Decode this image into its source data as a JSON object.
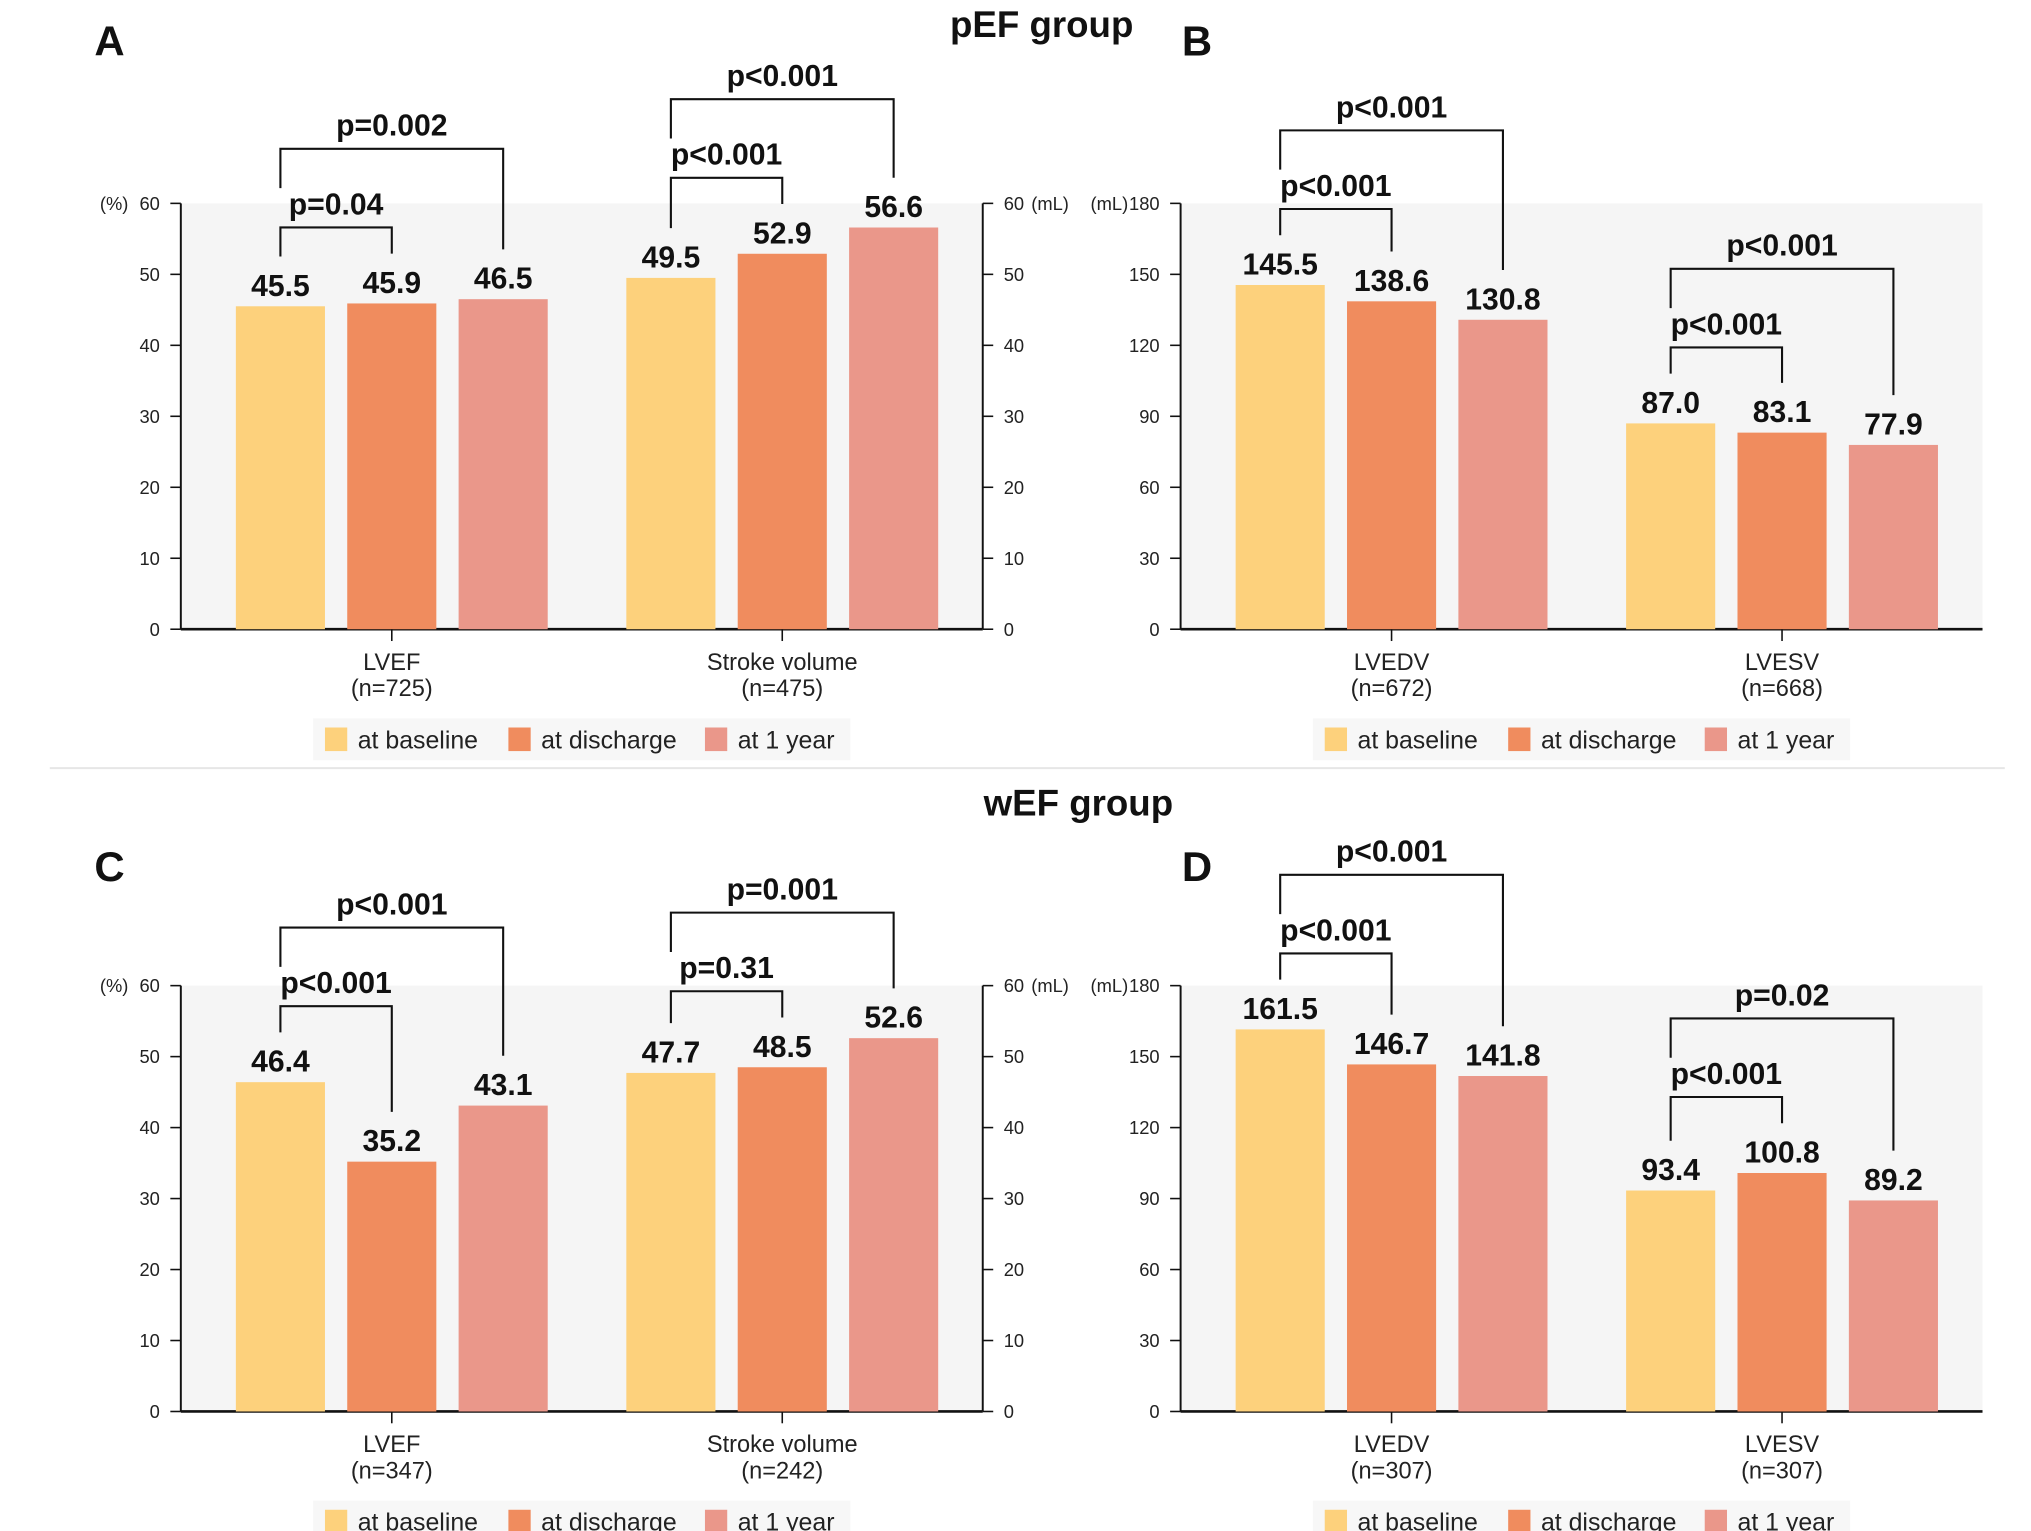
{
  "chart_data": {
    "type": "bar",
    "section_titles": [
      "pEF group",
      "wEF group"
    ],
    "legend": {
      "placement": "bottom",
      "entries": [
        {
          "name": "at baseline",
          "color": "#FDD17C"
        },
        {
          "name": "at discharge",
          "color": "#F08C5E"
        },
        {
          "name": "at 1 year",
          "color": "#EA978A"
        }
      ]
    },
    "panels": [
      {
        "letter": "A",
        "section": "pEF group",
        "left_axis": {
          "unit": "(%)",
          "ylim": [
            0,
            60
          ],
          "ticks": [
            0,
            10,
            20,
            30,
            40,
            50,
            60
          ]
        },
        "right_axis": {
          "unit": "(mL)",
          "ylim": [
            0,
            60
          ],
          "ticks": [
            0,
            10,
            20,
            30,
            40,
            50,
            60
          ]
        },
        "groups": [
          {
            "label": "LVEF",
            "n": "(n=725)",
            "values": [
              45.5,
              45.9,
              46.5
            ],
            "comparisons": [
              {
                "from": 0,
                "to": 1,
                "p": "p=0.04"
              },
              {
                "from": 0,
                "to": 2,
                "p": "p=0.002"
              }
            ]
          },
          {
            "label": "Stroke volume",
            "n": "(n=475)",
            "values": [
              49.5,
              52.9,
              56.6
            ],
            "comparisons": [
              {
                "from": 0,
                "to": 1,
                "p": "p<0.001"
              },
              {
                "from": 0,
                "to": 2,
                "p": "p<0.001"
              }
            ]
          }
        ]
      },
      {
        "letter": "B",
        "section": "pEF group",
        "left_axis": {
          "unit": "(mL)",
          "ylim": [
            0,
            180
          ],
          "ticks": [
            0,
            30,
            60,
            90,
            120,
            150,
            180
          ]
        },
        "groups": [
          {
            "label": "LVEDV",
            "n": "(n=672)",
            "values": [
              145.5,
              138.6,
              130.8
            ],
            "comparisons": [
              {
                "from": 0,
                "to": 1,
                "p": "p<0.001"
              },
              {
                "from": 0,
                "to": 2,
                "p": "p<0.001"
              }
            ]
          },
          {
            "label": "LVESV",
            "n": "(n=668)",
            "values": [
              87.0,
              83.1,
              77.9
            ],
            "comparisons": [
              {
                "from": 0,
                "to": 1,
                "p": "p<0.001"
              },
              {
                "from": 0,
                "to": 2,
                "p": "p<0.001"
              }
            ]
          }
        ]
      },
      {
        "letter": "C",
        "section": "wEF group",
        "left_axis": {
          "unit": "(%)",
          "ylim": [
            0,
            60
          ],
          "ticks": [
            0,
            10,
            20,
            30,
            40,
            50,
            60
          ]
        },
        "right_axis": {
          "unit": "(mL)",
          "ylim": [
            0,
            60
          ],
          "ticks": [
            0,
            10,
            20,
            30,
            40,
            50,
            60
          ]
        },
        "groups": [
          {
            "label": "LVEF",
            "n": "(n=347)",
            "values": [
              46.4,
              35.2,
              43.1
            ],
            "comparisons": [
              {
                "from": 0,
                "to": 1,
                "p": "p<0.001"
              },
              {
                "from": 0,
                "to": 2,
                "p": "p<0.001"
              }
            ]
          },
          {
            "label": "Stroke volume",
            "n": "(n=242)",
            "values": [
              47.7,
              48.5,
              52.6
            ],
            "comparisons": [
              {
                "from": 0,
                "to": 1,
                "p": "p=0.31"
              },
              {
                "from": 0,
                "to": 2,
                "p": "p=0.001"
              }
            ]
          }
        ]
      },
      {
        "letter": "D",
        "section": "wEF group",
        "left_axis": {
          "unit": "(mL)",
          "ylim": [
            0,
            180
          ],
          "ticks": [
            0,
            30,
            60,
            90,
            120,
            150,
            180
          ]
        },
        "groups": [
          {
            "label": "LVEDV",
            "n": "(n=307)",
            "values": [
              161.5,
              146.7,
              141.8
            ],
            "comparisons": [
              {
                "from": 0,
                "to": 1,
                "p": "p<0.001"
              },
              {
                "from": 0,
                "to": 2,
                "p": "p<0.001"
              }
            ]
          },
          {
            "label": "LVESV",
            "n": "(n=307)",
            "values": [
              93.4,
              100.8,
              89.2
            ],
            "comparisons": [
              {
                "from": 0,
                "to": 1,
                "p": "p<0.001"
              },
              {
                "from": 0,
                "to": 2,
                "p": "p=0.02"
              }
            ]
          }
        ]
      }
    ],
    "grid": false,
    "plot_background": "#F5F5F5"
  }
}
